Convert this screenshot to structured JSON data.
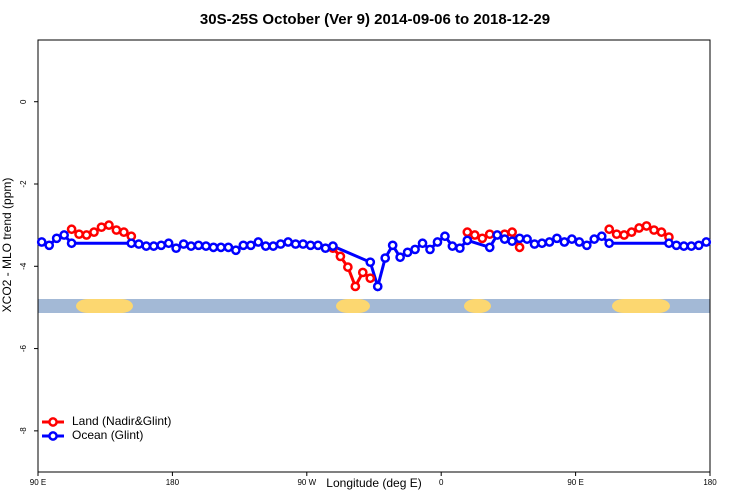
{
  "chart_data": {
    "type": "line",
    "title": "30S-25S October (Ver 9)   2014-09-06 to 2018-12-29",
    "xlabel": "Longitude (deg E)",
    "ylabel": "XCO2 - MLO trend (ppm)",
    "xlim": [
      90,
      540
    ],
    "ylim": [
      -9,
      1.5
    ],
    "xticks": [
      {
        "value": 90,
        "label": "90 E"
      },
      180,
      {
        "value": 270,
        "label": "90 W"
      },
      {
        "value": 360,
        "label": "0"
      },
      {
        "value": 450,
        "label": "90 E"
      },
      {
        "value": 540,
        "label": "180"
      }
    ],
    "yticks": [
      0,
      -2,
      -4,
      -6,
      -8
    ],
    "legend": "bottom-left",
    "series": [
      {
        "name": "Land (Nadir&Glint)",
        "color": "#ff0000",
        "x": [
          112.5,
          117.5,
          122.5,
          127.5,
          132.5,
          137.5,
          142.5,
          147.5,
          152.5,
          null,
          287.5,
          292.5,
          297.5,
          302.5,
          307.5,
          312.5,
          null,
          377.5,
          382.5,
          387.5,
          392.5,
          402.5,
          407.5,
          412.5,
          null,
          472.5,
          477.5,
          482.5,
          487.5,
          492.5,
          497.5,
          502.5,
          507.5,
          512.5
        ],
        "values": [
          -3.1,
          -3.22,
          -3.24,
          -3.17,
          -3.05,
          -3.0,
          -3.12,
          -3.17,
          -3.27,
          null,
          -3.56,
          -3.76,
          -4.02,
          -4.49,
          -4.15,
          -4.29,
          null,
          -3.17,
          -3.24,
          -3.32,
          -3.22,
          -3.22,
          -3.17,
          -3.54,
          null,
          -3.1,
          -3.22,
          -3.24,
          -3.17,
          -3.07,
          -3.02,
          -3.12,
          -3.17,
          -3.29
        ]
      },
      {
        "name": "Ocean (Glint)",
        "color": "#0000ff",
        "x": [
          92.5,
          97.5,
          102.5,
          107.5,
          112.5,
          152.5,
          157.5,
          162.5,
          167.5,
          172.5,
          177.5,
          182.5,
          187.5,
          192.5,
          197.5,
          202.5,
          207.5,
          212.5,
          217.5,
          222.5,
          227.5,
          232.5,
          237.5,
          242.5,
          247.5,
          252.5,
          257.5,
          262.5,
          267.5,
          272.5,
          277.5,
          282.5,
          287.5,
          312.5,
          317.5,
          322.5,
          327.5,
          332.5,
          337.5,
          342.5,
          347.5,
          352.5,
          357.5,
          362.5,
          367.5,
          372.5,
          377.5,
          392.5,
          397.5,
          402.5,
          407.5,
          412.5,
          417.5,
          422.5,
          427.5,
          432.5,
          437.5,
          442.5,
          447.5,
          452.5,
          457.5,
          462.5,
          467.5,
          472.5,
          512.5,
          517.5,
          522.5,
          527.5,
          532.5,
          537.5
        ],
        "values": [
          -3.41,
          -3.49,
          -3.32,
          -3.24,
          -3.44,
          -3.44,
          -3.46,
          -3.51,
          -3.51,
          -3.49,
          -3.44,
          -3.56,
          -3.46,
          -3.51,
          -3.49,
          -3.51,
          -3.54,
          -3.54,
          -3.54,
          -3.61,
          -3.49,
          -3.49,
          -3.41,
          -3.51,
          -3.51,
          -3.46,
          -3.41,
          -3.46,
          -3.46,
          -3.49,
          -3.49,
          -3.56,
          -3.51,
          -3.9,
          -4.49,
          -3.8,
          -3.49,
          -3.78,
          -3.66,
          -3.59,
          -3.44,
          -3.59,
          -3.41,
          -3.27,
          -3.51,
          -3.56,
          -3.37,
          -3.54,
          -3.24,
          -3.34,
          -3.39,
          -3.32,
          -3.34,
          -3.46,
          -3.44,
          -3.41,
          -3.32,
          -3.41,
          -3.34,
          -3.41,
          -3.49,
          -3.34,
          -3.27,
          -3.44,
          -3.44,
          -3.49,
          -3.51,
          -3.51,
          -3.49,
          -3.41
        ]
      }
    ]
  }
}
